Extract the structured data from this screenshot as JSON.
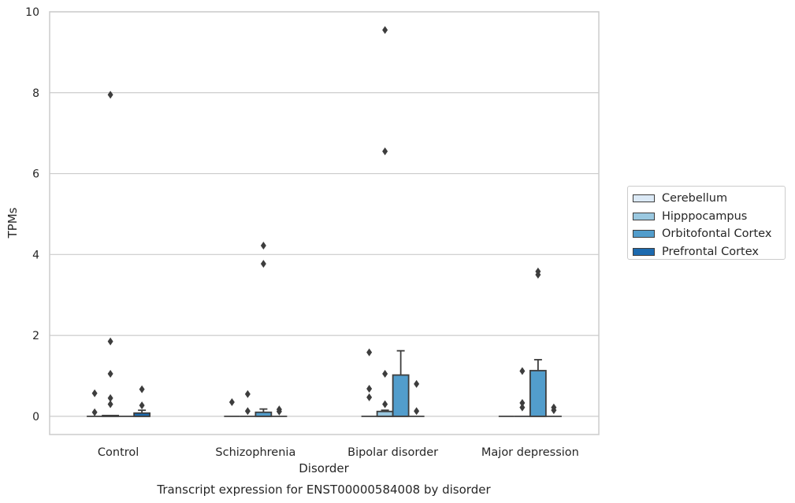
{
  "chart_data": {
    "type": "boxplot",
    "title": "Transcript expression for ENST00000584008 by disorder",
    "xlabel": "Disorder",
    "ylabel": "TPMs",
    "ylim": [
      -0.45,
      10
    ],
    "yticks": [
      0,
      2,
      4,
      6,
      8,
      10
    ],
    "grid": "horizontal",
    "legend_position": "right",
    "categories": [
      "Control",
      "Schizophrenia",
      "Bipolar disorder",
      "Major depression"
    ],
    "series": [
      {
        "name": "Cerebellum",
        "color": "#dbe9f6",
        "boxes": [
          {
            "q1": 0,
            "median": 0,
            "q3": 0,
            "whisker_low": 0,
            "whisker_high": 0,
            "outliers": [
              0.57,
              0.1
            ]
          },
          {
            "q1": 0,
            "median": 0,
            "q3": 0,
            "whisker_low": 0,
            "whisker_high": 0,
            "outliers": [
              0.35
            ]
          },
          {
            "q1": 0,
            "median": 0,
            "q3": 0,
            "whisker_low": 0,
            "whisker_high": 0,
            "outliers": [
              1.58,
              0.68,
              0.47
            ]
          },
          {
            "q1": 0,
            "median": 0,
            "q3": 0,
            "whisker_low": 0,
            "whisker_high": 0,
            "outliers": []
          }
        ]
      },
      {
        "name": "Hipppocampus",
        "color": "#9ac8e0",
        "boxes": [
          {
            "q1": 0,
            "median": 0,
            "q3": 0.02,
            "whisker_low": 0,
            "whisker_high": 0.02,
            "outliers": [
              7.95,
              1.85,
              1.05,
              0.45,
              0.3
            ]
          },
          {
            "q1": 0,
            "median": 0,
            "q3": 0,
            "whisker_low": 0,
            "whisker_high": 0,
            "outliers": [
              0.55,
              0.13
            ]
          },
          {
            "q1": 0,
            "median": 0,
            "q3": 0.12,
            "whisker_low": 0,
            "whisker_high": 0.15,
            "outliers": [
              9.55,
              6.55,
              1.05,
              0.3
            ]
          },
          {
            "q1": 0,
            "median": 0,
            "q3": 0,
            "whisker_low": 0,
            "whisker_high": 0,
            "outliers": [
              1.12,
              0.33,
              0.22
            ]
          }
        ]
      },
      {
        "name": "Orbitofontal Cortex",
        "color": "#529dcc",
        "boxes": [
          {
            "q1": 0,
            "median": 0,
            "q3": 0,
            "whisker_low": 0,
            "whisker_high": 0,
            "outliers": []
          },
          {
            "q1": 0,
            "median": 0,
            "q3": 0.1,
            "whisker_low": 0,
            "whisker_high": 0.18,
            "outliers": [
              4.22,
              3.77
            ]
          },
          {
            "q1": 0,
            "median": 0,
            "q3": 1.02,
            "whisker_low": 0,
            "whisker_high": 1.62,
            "outliers": []
          },
          {
            "q1": 0,
            "median": 0,
            "q3": 1.13,
            "whisker_low": 0,
            "whisker_high": 1.4,
            "outliers": [
              3.58,
              3.5
            ]
          }
        ]
      },
      {
        "name": "Prefrontal Cortex",
        "color": "#1c6aaf",
        "boxes": [
          {
            "q1": 0,
            "median": 0,
            "q3": 0.08,
            "whisker_low": 0,
            "whisker_high": 0.15,
            "outliers": [
              0.67,
              0.27
            ]
          },
          {
            "q1": 0,
            "median": 0,
            "q3": 0,
            "whisker_low": 0,
            "whisker_high": 0,
            "outliers": [
              0.17,
              0.12
            ]
          },
          {
            "q1": 0,
            "median": 0,
            "q3": 0,
            "whisker_low": 0,
            "whisker_high": 0,
            "outliers": [
              0.8,
              0.13
            ]
          },
          {
            "q1": 0,
            "median": 0,
            "q3": 0,
            "whisker_low": 0,
            "whisker_high": 0,
            "outliers": [
              0.22,
              0.15
            ]
          }
        ]
      }
    ]
  }
}
